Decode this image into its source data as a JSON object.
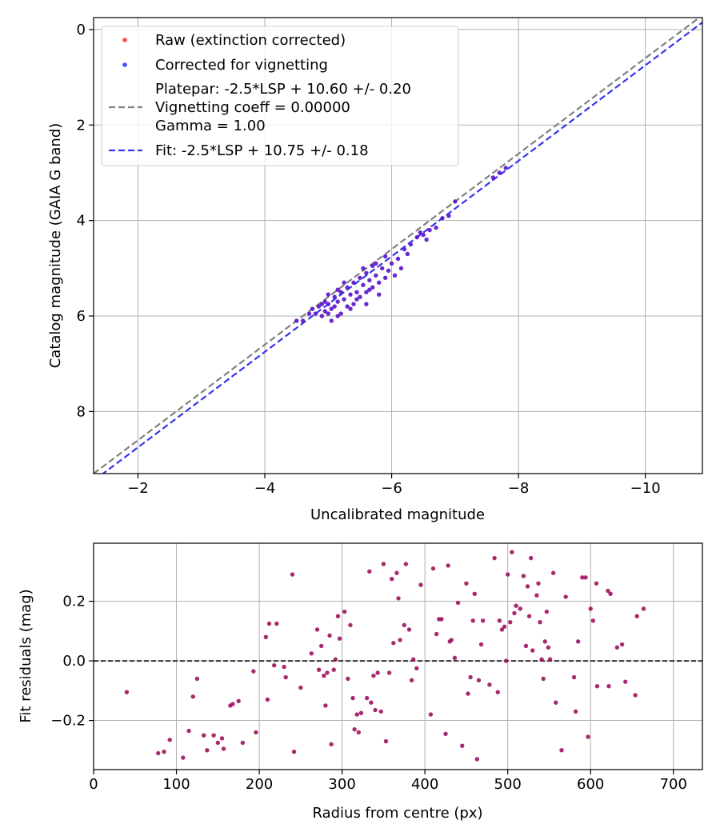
{
  "chart_data": [
    {
      "type": "scatter",
      "xlabel": "Uncalibrated magnitude",
      "ylabel": "Catalog magnitude (GAIA G band)",
      "xlim": [
        -1.3,
        -10.9
      ],
      "ylim": [
        9.3,
        -0.25
      ],
      "x_inverted": true,
      "y_inverted": true,
      "xticks": [
        -2,
        -4,
        -6,
        -8,
        -10
      ],
      "yticks": [
        0,
        2,
        4,
        6,
        8
      ],
      "xtick_labels": [
        "−2",
        "−4",
        "−6",
        "−8",
        "−10"
      ],
      "ytick_labels": [
        "0",
        "2",
        "4",
        "6",
        "8"
      ],
      "grid": true,
      "legend_position": "top-left",
      "legend": [
        {
          "label": "Raw (extinction corrected)",
          "marker": "dot",
          "color": "#ff4a4a"
        },
        {
          "label": "Corrected for vignetting",
          "marker": "dot",
          "color": "#4a4aff"
        },
        {
          "label_lines": [
            "Platepar: -2.5*LSP + 10.60 +/- 0.20",
            "Vignetting coeff = 0.00000",
            "Gamma = 1.00"
          ],
          "marker": "dashed-line",
          "color": "#808080"
        },
        {
          "label": "Fit: -2.5*LSP + 10.75 +/- 0.18",
          "marker": "dashed-line",
          "color": "#3535ee"
        }
      ],
      "lines": [
        {
          "name": "Platepar",
          "offset": 10.6,
          "color": "#808080",
          "style": "dashed"
        },
        {
          "name": "Fit",
          "offset": 10.75,
          "color": "#3535ee",
          "style": "dashed"
        }
      ],
      "series": [
        {
          "name": "Corrected for vignetting",
          "color": "#5a12c8",
          "points": [
            [
              -4.5,
              6.1
            ],
            [
              -4.6,
              6.1
            ],
            [
              -4.7,
              5.95
            ],
            [
              -4.75,
              5.85
            ],
            [
              -4.8,
              5.95
            ],
            [
              -4.85,
              5.8
            ],
            [
              -4.9,
              6.0
            ],
            [
              -4.95,
              5.9
            ],
            [
              -5.0,
              5.75
            ],
            [
              -5.0,
              5.95
            ],
            [
              -5.05,
              5.85
            ],
            [
              -5.1,
              5.6
            ],
            [
              -5.1,
              5.8
            ],
            [
              -5.15,
              5.7
            ],
            [
              -5.2,
              5.5
            ],
            [
              -5.2,
              5.95
            ],
            [
              -5.25,
              5.65
            ],
            [
              -5.3,
              5.4
            ],
            [
              -5.3,
              5.8
            ],
            [
              -5.35,
              5.55
            ],
            [
              -5.4,
              5.3
            ],
            [
              -5.4,
              5.75
            ],
            [
              -5.45,
              5.5
            ],
            [
              -5.5,
              5.2
            ],
            [
              -5.5,
              5.6
            ],
            [
              -5.55,
              5.35
            ],
            [
              -5.6,
              5.1
            ],
            [
              -5.6,
              5.5
            ],
            [
              -5.65,
              5.25
            ],
            [
              -5.7,
              4.95
            ],
            [
              -5.7,
              5.4
            ],
            [
              -5.75,
              5.15
            ],
            [
              -5.8,
              5.3
            ],
            [
              -5.85,
              5.0
            ],
            [
              -5.9,
              4.75
            ],
            [
              -5.9,
              5.2
            ],
            [
              -5.95,
              5.05
            ],
            [
              -6.0,
              4.9
            ],
            [
              -6.1,
              4.8
            ],
            [
              -6.15,
              5.0
            ],
            [
              -6.2,
              4.6
            ],
            [
              -6.3,
              4.5
            ],
            [
              -6.4,
              4.35
            ],
            [
              -6.45,
              4.25
            ],
            [
              -6.5,
              4.3
            ],
            [
              -6.55,
              4.4
            ],
            [
              -6.6,
              4.2
            ],
            [
              -6.7,
              4.15
            ],
            [
              -6.8,
              3.95
            ],
            [
              -6.9,
              3.9
            ],
            [
              -7.0,
              3.6
            ],
            [
              -7.6,
              3.1
            ],
            [
              -7.7,
              3.0
            ],
            [
              -7.8,
              2.9
            ],
            [
              -5.05,
              6.1
            ],
            [
              -4.95,
              5.7
            ],
            [
              -5.15,
              5.45
            ],
            [
              -5.35,
              5.85
            ],
            [
              -5.55,
              5.0
            ],
            [
              -5.25,
              5.3
            ],
            [
              -5.45,
              5.65
            ],
            [
              -5.65,
              5.45
            ],
            [
              -5.8,
              5.55
            ],
            [
              -5.0,
              5.55
            ],
            [
              -4.9,
              5.75
            ],
            [
              -5.6,
              5.75
            ],
            [
              -6.05,
              5.15
            ],
            [
              -6.25,
              4.7
            ],
            [
              -5.75,
              4.9
            ],
            [
              -5.15,
              6.0
            ]
          ]
        }
      ]
    },
    {
      "type": "scatter",
      "xlabel": "Radius from centre (px)",
      "ylabel": "Fit residuals (mag)",
      "xlim": [
        0,
        735
      ],
      "ylim": [
        -0.365,
        0.395
      ],
      "xticks": [
        0,
        100,
        200,
        300,
        400,
        500,
        600,
        700
      ],
      "yticks": [
        -0.2,
        0.0,
        0.2
      ],
      "xtick_labels": [
        "0",
        "100",
        "200",
        "300",
        "400",
        "500",
        "600",
        "700"
      ],
      "ytick_labels": [
        "−0.2",
        "0.0",
        "0.2"
      ],
      "grid": true,
      "hline": {
        "y": 0.0,
        "color": "#333333",
        "style": "dashed"
      },
      "series": [
        {
          "name": "Residuals",
          "color": "#a0125e",
          "points": [
            [
              40,
              -0.105
            ],
            [
              78,
              -0.31
            ],
            [
              85,
              -0.305
            ],
            [
              92,
              -0.265
            ],
            [
              108,
              -0.325
            ],
            [
              115,
              -0.235
            ],
            [
              120,
              -0.12
            ],
            [
              125,
              -0.06
            ],
            [
              133,
              -0.25
            ],
            [
              137,
              -0.3
            ],
            [
              145,
              -0.25
            ],
            [
              150,
              -0.275
            ],
            [
              155,
              -0.26
            ],
            [
              157,
              -0.295
            ],
            [
              165,
              -0.15
            ],
            [
              168,
              -0.145
            ],
            [
              175,
              -0.135
            ],
            [
              180,
              -0.275
            ],
            [
              193,
              -0.035
            ],
            [
              196,
              -0.24
            ],
            [
              208,
              0.08
            ],
            [
              210,
              -0.13
            ],
            [
              212,
              0.125
            ],
            [
              218,
              -0.015
            ],
            [
              221,
              0.125
            ],
            [
              230,
              -0.02
            ],
            [
              232,
              -0.055
            ],
            [
              240,
              0.29
            ],
            [
              242,
              -0.305
            ],
            [
              250,
              -0.09
            ],
            [
              263,
              0.025
            ],
            [
              270,
              0.105
            ],
            [
              272,
              -0.03
            ],
            [
              275,
              0.05
            ],
            [
              278,
              -0.05
            ],
            [
              280,
              -0.15
            ],
            [
              282,
              -0.04
            ],
            [
              285,
              0.085
            ],
            [
              287,
              -0.28
            ],
            [
              290,
              -0.03
            ],
            [
              292,
              0.005
            ],
            [
              295,
              0.15
            ],
            [
              297,
              0.075
            ],
            [
              303,
              0.165
            ],
            [
              307,
              -0.06
            ],
            [
              310,
              0.12
            ],
            [
              313,
              -0.125
            ],
            [
              315,
              -0.23
            ],
            [
              318,
              -0.18
            ],
            [
              320,
              -0.24
            ],
            [
              323,
              -0.175
            ],
            [
              330,
              -0.125
            ],
            [
              333,
              0.3
            ],
            [
              335,
              -0.14
            ],
            [
              338,
              -0.05
            ],
            [
              340,
              -0.165
            ],
            [
              343,
              -0.04
            ],
            [
              347,
              -0.17
            ],
            [
              350,
              0.325
            ],
            [
              353,
              -0.27
            ],
            [
              357,
              -0.04
            ],
            [
              360,
              0.275
            ],
            [
              362,
              0.06
            ],
            [
              366,
              0.295
            ],
            [
              368,
              0.21
            ],
            [
              370,
              0.07
            ],
            [
              375,
              0.12
            ],
            [
              377,
              0.325
            ],
            [
              381,
              0.105
            ],
            [
              384,
              -0.065
            ],
            [
              386,
              0.005
            ],
            [
              390,
              -0.025
            ],
            [
              395,
              0.255
            ],
            [
              407,
              -0.18
            ],
            [
              410,
              0.31
            ],
            [
              414,
              0.09
            ],
            [
              417,
              0.14
            ],
            [
              420,
              0.14
            ],
            [
              425,
              -0.245
            ],
            [
              428,
              0.32
            ],
            [
              430,
              0.065
            ],
            [
              432,
              0.07
            ],
            [
              436,
              0.01
            ],
            [
              440,
              0.195
            ],
            [
              445,
              -0.285
            ],
            [
              450,
              0.26
            ],
            [
              452,
              -0.11
            ],
            [
              455,
              -0.055
            ],
            [
              458,
              0.135
            ],
            [
              460,
              0.225
            ],
            [
              463,
              -0.33
            ],
            [
              465,
              -0.065
            ],
            [
              468,
              0.055
            ],
            [
              470,
              0.135
            ],
            [
              478,
              -0.08
            ],
            [
              484,
              0.345
            ],
            [
              488,
              -0.105
            ],
            [
              490,
              0.135
            ],
            [
              493,
              0.105
            ],
            [
              496,
              0.115
            ],
            [
              498,
              0.0
            ],
            [
              500,
              0.29
            ],
            [
              503,
              0.13
            ],
            [
              505,
              0.365
            ],
            [
              508,
              0.16
            ],
            [
              510,
              0.185
            ],
            [
              515,
              0.175
            ],
            [
              519,
              0.285
            ],
            [
              522,
              0.05
            ],
            [
              524,
              0.25
            ],
            [
              526,
              0.15
            ],
            [
              528,
              0.345
            ],
            [
              530,
              0.035
            ],
            [
              535,
              0.22
            ],
            [
              537,
              0.26
            ],
            [
              539,
              0.13
            ],
            [
              541,
              0.005
            ],
            [
              543,
              -0.06
            ],
            [
              545,
              0.065
            ],
            [
              547,
              0.165
            ],
            [
              549,
              0.045
            ],
            [
              551,
              0.005
            ],
            [
              555,
              0.295
            ],
            [
              558,
              -0.14
            ],
            [
              565,
              -0.3
            ],
            [
              570,
              0.215
            ],
            [
              580,
              -0.055
            ],
            [
              582,
              -0.17
            ],
            [
              585,
              0.065
            ],
            [
              590,
              0.28
            ],
            [
              594,
              0.28
            ],
            [
              597,
              -0.255
            ],
            [
              600,
              0.175
            ],
            [
              603,
              0.135
            ],
            [
              607,
              0.26
            ],
            [
              608,
              -0.085
            ],
            [
              621,
              0.235
            ],
            [
              622,
              -0.085
            ],
            [
              624,
              0.225
            ],
            [
              632,
              0.045
            ],
            [
              638,
              0.055
            ],
            [
              642,
              -0.07
            ],
            [
              654,
              -0.115
            ],
            [
              656,
              0.15
            ],
            [
              664,
              0.175
            ]
          ]
        }
      ]
    }
  ]
}
